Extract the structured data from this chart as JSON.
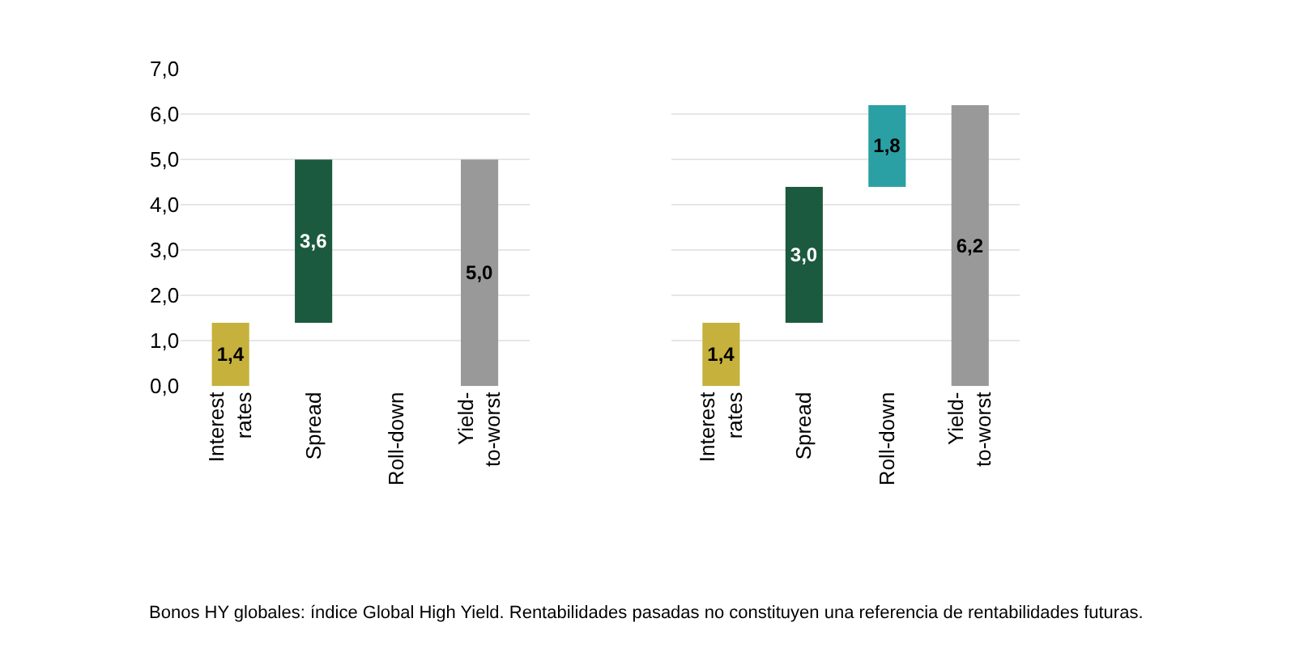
{
  "chart_data": [
    {
      "type": "bar",
      "categories": [
        "Interest rates",
        "Spread",
        "Roll-down",
        "Yield-to-worst"
      ],
      "values": [
        1.4,
        3.6,
        null,
        5.0
      ],
      "base": [
        0,
        1.4,
        null,
        0
      ],
      "colors": [
        "#c6b13c",
        "#1b5a3e",
        "#2aa0a4",
        "#999999"
      ],
      "value_labels": [
        "1,4",
        "3,6",
        null,
        "5,0"
      ],
      "ylim": [
        0,
        7
      ],
      "yticks": [
        {
          "value": 0,
          "label": "0,0"
        },
        {
          "value": 1,
          "label": "1,0"
        },
        {
          "value": 2,
          "label": "2,0"
        },
        {
          "value": 3,
          "label": "3,0"
        },
        {
          "value": 4,
          "label": "4,0"
        },
        {
          "value": 5,
          "label": "5,0"
        },
        {
          "value": 6,
          "label": "6,0"
        },
        {
          "value": 7,
          "label": "7,0"
        }
      ],
      "grid": "y",
      "annotations": [
        "Bonos HY globales: índice Global High Yield. Rentabilidades pasadas no constituyen una referencia de rentabilidades futuras."
      ]
    },
    {
      "type": "bar",
      "categories": [
        "Interest rates",
        "Spread",
        "Roll-down",
        "Yield-to-worst"
      ],
      "values": [
        1.4,
        3.0,
        1.8,
        6.2
      ],
      "base": [
        0,
        1.4,
        4.4,
        0
      ],
      "colors": [
        "#c6b13c",
        "#1b5a3e",
        "#2aa0a4",
        "#999999"
      ],
      "value_labels": [
        "1,4",
        "3,0",
        "1,8",
        "6,2"
      ],
      "ylim": [
        0,
        7
      ],
      "yticks": [
        {
          "value": 0,
          "label": null
        },
        {
          "value": 1,
          "label": null
        },
        {
          "value": 2,
          "label": null
        },
        {
          "value": 3,
          "label": null
        },
        {
          "value": 4,
          "label": null
        },
        {
          "value": 5,
          "label": null
        },
        {
          "value": 6,
          "label": null
        },
        {
          "value": 7,
          "label": null
        }
      ],
      "grid": "y",
      "tick_labels": "x"
    }
  ]
}
